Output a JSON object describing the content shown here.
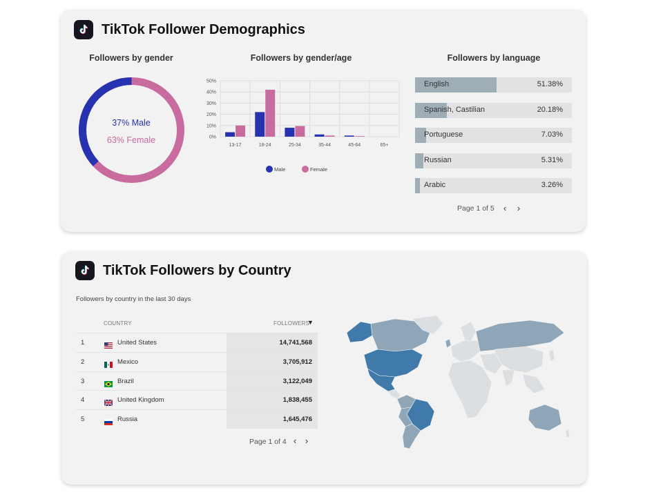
{
  "colors": {
    "male": "#2732b0",
    "female": "#c86b9e",
    "lang_fill": "#9fadb6",
    "lang_track": "#e2e2e2",
    "map_dark": "#3f7aab",
    "map_mid": "#8ea6b8",
    "map_light": "#dcdfe2"
  },
  "demographics": {
    "title": "TikTok Follower Demographics",
    "logo_icon": "tiktok-icon",
    "gender": {
      "title": "Followers by gender",
      "male_label": "37% Male",
      "female_label": "63% Female",
      "male_pct": 37,
      "female_pct": 63
    },
    "gender_age": {
      "title": "Followers by gender/age",
      "legend_male": "Male",
      "legend_female": "Female"
    },
    "language": {
      "title": "Followers by language",
      "items": [
        {
          "name": "English",
          "pct_label": "51.38%",
          "value": 51.38
        },
        {
          "name": "Spanish, Castilian",
          "pct_label": "20.18%",
          "value": 20.18
        },
        {
          "name": "Portuguese",
          "pct_label": "7.03%",
          "value": 7.03
        },
        {
          "name": "Russian",
          "pct_label": "5.31%",
          "value": 5.31
        },
        {
          "name": "Arabic",
          "pct_label": "3.26%",
          "value": 3.26
        }
      ],
      "pager": "Page 1 of 5"
    }
  },
  "countries": {
    "title": "TikTok Followers by Country",
    "logo_icon": "tiktok-icon",
    "subtitle": "Followers by country in the last 30 days",
    "col_country": "COUNTRY",
    "col_followers": "FOLLOWERS",
    "sort_icon": "sort-desc-icon",
    "rows": [
      {
        "rank": "1",
        "country": "United States",
        "followers": "14,741,568",
        "flag": "flag-us-icon"
      },
      {
        "rank": "2",
        "country": "Mexico",
        "followers": "3,705,912",
        "flag": "flag-mx-icon"
      },
      {
        "rank": "3",
        "country": "Brazil",
        "followers": "3,122,049",
        "flag": "flag-br-icon"
      },
      {
        "rank": "4",
        "country": "United Kingdom",
        "followers": "1,838,455",
        "flag": "flag-gb-icon"
      },
      {
        "rank": "5",
        "country": "Russia",
        "followers": "1,645,476",
        "flag": "flag-ru-icon"
      }
    ],
    "pager": "Page 1 of 4",
    "map_icon": "world-map-icon"
  },
  "chart_data": {
    "type": "bar",
    "title": "Followers by gender/age",
    "categories": [
      "13-17",
      "18-24",
      "25-34",
      "35-44",
      "45-64",
      "65+"
    ],
    "series": [
      {
        "name": "Male",
        "values": [
          4,
          22,
          8,
          2,
          1,
          0
        ]
      },
      {
        "name": "Female",
        "values": [
          10,
          42,
          9.5,
          1,
          0.5,
          0
        ]
      }
    ],
    "yticks": [
      "0%",
      "10%",
      "20%",
      "30%",
      "40%",
      "50%"
    ],
    "ylim": [
      0,
      50
    ],
    "xlabel": "",
    "ylabel": "",
    "legend": "bottom"
  }
}
